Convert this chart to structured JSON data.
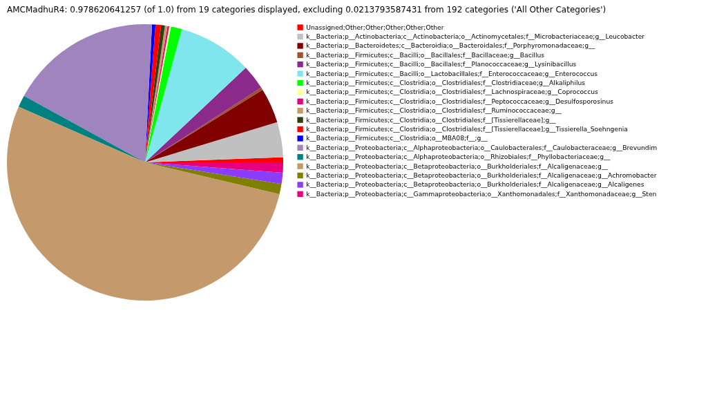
{
  "chart_data": {
    "type": "pie",
    "title": "AMCMadhuR4: 0.978620641257 (of 1.0) from 19 categories displayed, excluding 0.0213793587431 from 192 categories ('All Other Categories')",
    "categories": [
      "Unassigned;Other;Other;Other;Other;Other",
      "k__Bacteria;p__Actinobacteria;c__Actinobacteria;o__Actinomycetales;f__Microbacteriaceae;g__Leucobacter",
      "k__Bacteria;p__Bacteroidetes;c__Bacteroidia;o__Bacteroidales;f__Porphyromonadaceae;g__",
      "k__Bacteria;p__Firmicutes;c__Bacilli;o__Bacillales;f__Bacillaceae;g__Bacillus",
      "k__Bacteria;p__Firmicutes;c__Bacilli;o__Bacillales;f__Planococcaceae;g__Lysinibacillus",
      "k__Bacteria;p__Firmicutes;c__Bacilli;o__Lactobacillales;f__Enterococcaceae;g__Enterococcus",
      "k__Bacteria;p__Firmicutes;c__Clostridia;o__Clostridiales;f__Clostridiaceae;g__Alkaliphilus",
      "k__Bacteria;p__Firmicutes;c__Clostridia;o__Clostridiales;f__Lachnospiraceae;g__Coprococcus",
      "k__Bacteria;p__Firmicutes;c__Clostridia;o__Clostridiales;f__Peptococcaceae;g__Desulfosporosinus",
      "k__Bacteria;p__Firmicutes;c__Clostridia;o__Clostridiales;f__Ruminococcaceae;g__",
      "k__Bacteria;p__Firmicutes;c__Clostridia;o__Clostridiales;f__[Tissierellaceae];g__",
      "k__Bacteria;p__Firmicutes;c__Clostridia;o__Clostridiales;f__[Tissierellaceae];g__Tissierella_Soehngenia",
      "k__Bacteria;p__Firmicutes;c__Clostridia;o__MBA08;f__;g__",
      "k__Bacteria;p__Proteobacteria;c__Alphaproteobacteria;o__Caulobacterales;f__Caulobacteraceae;g__Brevundim",
      "k__Bacteria;p__Proteobacteria;c__Alphaproteobacteria;o__Rhizobiales;f__Phyllobacteriaceae;g__",
      "k__Bacteria;p__Proteobacteria;c__Betaproteobacteria;o__Burkholderiales;f__Alcaligenaceae;g__",
      "k__Bacteria;p__Proteobacteria;c__Betaproteobacteria;o__Burkholderiales;f__Alcaligenaceae;g__Achromobacter",
      "k__Bacteria;p__Proteobacteria;c__Betaproteobacteria;o__Burkholderiales;f__Alcaligenaceae;g__Alcaligenes",
      "k__Bacteria;p__Proteobacteria;c__Gammaproteobacteria;o__Xanthomonadales;f__Xanthomonadaceae;g__Sten"
    ],
    "values": [
      0.6,
      4.1,
      4.1,
      0.3,
      2.9,
      8.7,
      1.3,
      0.2,
      0.2,
      0.3,
      0.45,
      0.65,
      0.4,
      17.8,
      1.4,
      52.9,
      1.2,
      1.3,
      1.2
    ],
    "colors": [
      "#ff0000",
      "#c0c0c0",
      "#800000",
      "#a0522d",
      "#8b2a8b",
      "#80e6ee",
      "#00ff00",
      "#ffff99",
      "#e6007e",
      "#c49a6c",
      "#2e3d12",
      "#ff0000",
      "#0000ff",
      "#a084be",
      "#008080",
      "#c49a6c",
      "#808000",
      "#8a3cff",
      "#e6007e"
    ],
    "legend": "right"
  }
}
